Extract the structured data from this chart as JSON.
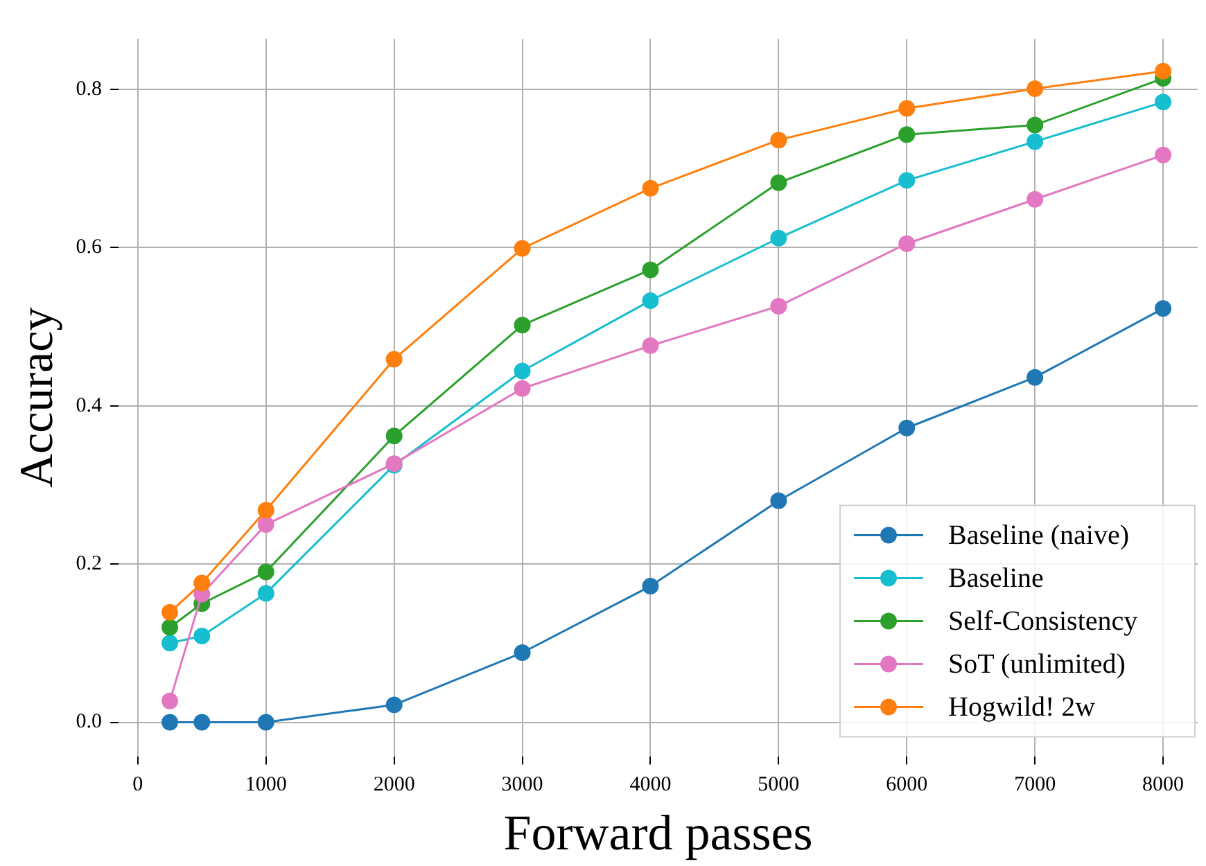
{
  "chart_data": {
    "type": "line",
    "xlabel": "Forward passes",
    "ylabel": "Accuracy",
    "x": [
      250,
      500,
      1000,
      2000,
      3000,
      4000,
      5000,
      6000,
      7000,
      8000
    ],
    "series": [
      {
        "name": "Baseline (naive)",
        "color": "#1f77b4",
        "values": [
          0,
          0,
          0,
          0.022,
          0.088,
          0.172,
          0.28,
          0.372,
          0.436,
          0.523
        ]
      },
      {
        "name": "Baseline",
        "color": "#17becf",
        "values": [
          0.1,
          0.109,
          0.163,
          0.325,
          0.444,
          0.533,
          0.612,
          0.685,
          0.734,
          0.784
        ]
      },
      {
        "name": "Self-Consistency",
        "color": "#2ca02c",
        "values": [
          0.12,
          0.15,
          0.19,
          0.362,
          0.502,
          0.572,
          0.682,
          0.743,
          0.755,
          0.814
        ]
      },
      {
        "name": "SoT (unlimited)",
        "color": "#e377c2",
        "values": [
          0.027,
          0.162,
          0.25,
          0.327,
          0.422,
          0.476,
          0.526,
          0.605,
          0.661,
          0.717
        ]
      },
      {
        "name": "Hogwild! 2w",
        "color": "#ff7f0e",
        "values": [
          0.139,
          0.176,
          0.268,
          0.459,
          0.599,
          0.675,
          0.736,
          0.776,
          0.801,
          0.823
        ]
      }
    ],
    "xlim": [
      -150,
      8270
    ],
    "ylim": [
      -0.043,
      0.864
    ],
    "xticks": [
      0,
      1000,
      2000,
      3000,
      4000,
      5000,
      6000,
      7000,
      8000
    ],
    "yticks": [
      {
        "value": 0,
        "label": "0.0"
      },
      {
        "value": 0.2,
        "label": "0.2"
      },
      {
        "value": 0.4,
        "label": "0.4"
      },
      {
        "value": 0.6,
        "label": "0.6"
      },
      {
        "value": 0.8,
        "label": "0.8"
      }
    ],
    "grid": true,
    "legend": "bottom right",
    "marker": "circle",
    "line_style": "solid"
  }
}
